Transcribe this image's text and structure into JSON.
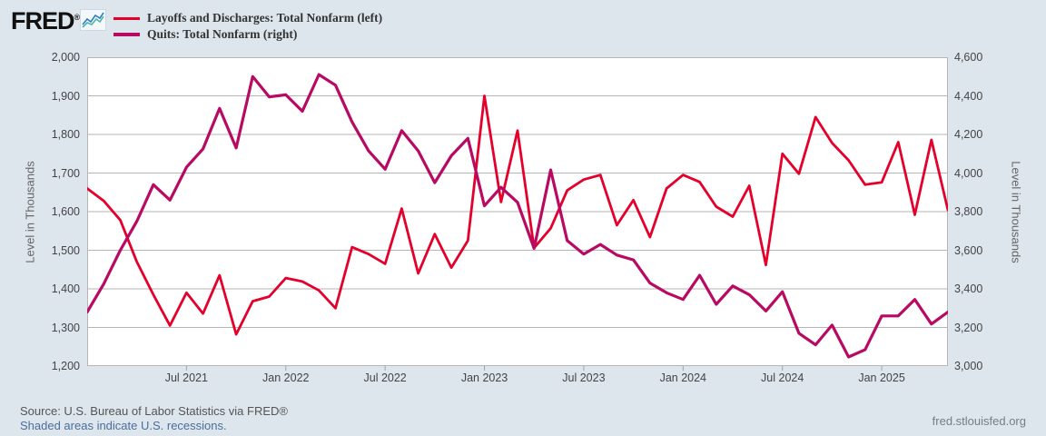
{
  "header": {
    "logo_text": "FRED",
    "logo_reg": "®"
  },
  "legend": [
    {
      "label": "Layoffs and Discharges: Total Nonfarm (left)",
      "color": "#e4002b"
    },
    {
      "label": "Quits: Total Nonfarm (right)",
      "color": "#b80a62"
    }
  ],
  "footer": {
    "source": "Source: U.S. Bureau of Labor Statistics via FRED®",
    "recessions_note": "Shaded areas indicate U.S. recessions.",
    "site": "fred.stlouisfed.org"
  },
  "chart_data": {
    "type": "line",
    "frequency": "Monthly",
    "x_start": "Jan 2021",
    "x_end": "May 2025",
    "grid": "horizontal",
    "legend_position": "top-left",
    "left_axis": {
      "title": "Level in Thousands",
      "min": 1200,
      "max": 2000,
      "ticks": [
        "2,000",
        "1,900",
        "1,800",
        "1,700",
        "1,600",
        "1,500",
        "1,400",
        "1,300",
        "1,200"
      ]
    },
    "right_axis": {
      "title": "Level in Thousands",
      "min": 3000,
      "max": 4600,
      "ticks": [
        "4,600",
        "4,400",
        "4,200",
        "4,000",
        "3,800",
        "3,600",
        "3,400",
        "3,200",
        "3,000"
      ]
    },
    "x_tick_labels": [
      "Jul 2021",
      "Jan 2022",
      "Jul 2022",
      "Jan 2023",
      "Jul 2023",
      "Jan 2024",
      "Jul 2024",
      "Jan 2025"
    ],
    "x_tick_month_index": [
      6,
      12,
      18,
      24,
      30,
      36,
      42,
      48
    ],
    "series": [
      {
        "name": "Layoffs and Discharges: Total Nonfarm",
        "axis": "left",
        "color": "#e4002b",
        "values": [
          1660,
          1628,
          1578,
          1470,
          1385,
          1305,
          1390,
          1336,
          1435,
          1282,
          1368,
          1380,
          1428,
          1419,
          1396,
          1350,
          1508,
          1490,
          1465,
          1608,
          1440,
          1542,
          1455,
          1525,
          1900,
          1625,
          1810,
          1506,
          1557,
          1655,
          1683,
          1695,
          1565,
          1630,
          1534,
          1660,
          1695,
          1677,
          1613,
          1587,
          1667,
          1462,
          1750,
          1698,
          1845,
          1778,
          1733,
          1670,
          1676,
          1780,
          1592,
          1786,
          1604
        ]
      },
      {
        "name": "Quits: Total Nonfarm",
        "axis": "right",
        "color": "#b80a62",
        "values": [
          3280,
          3425,
          3600,
          3750,
          3940,
          3860,
          4030,
          4125,
          4335,
          4130,
          4500,
          4395,
          4405,
          4320,
          4510,
          4455,
          4265,
          4115,
          4020,
          4220,
          4115,
          3950,
          4090,
          4180,
          3830,
          3926,
          3848,
          3610,
          4016,
          3650,
          3580,
          3630,
          3575,
          3550,
          3430,
          3380,
          3345,
          3470,
          3320,
          3415,
          3370,
          3285,
          3385,
          3170,
          3110,
          3212,
          3047,
          3085,
          3260,
          3260,
          3345,
          3218,
          3280
        ]
      }
    ]
  }
}
